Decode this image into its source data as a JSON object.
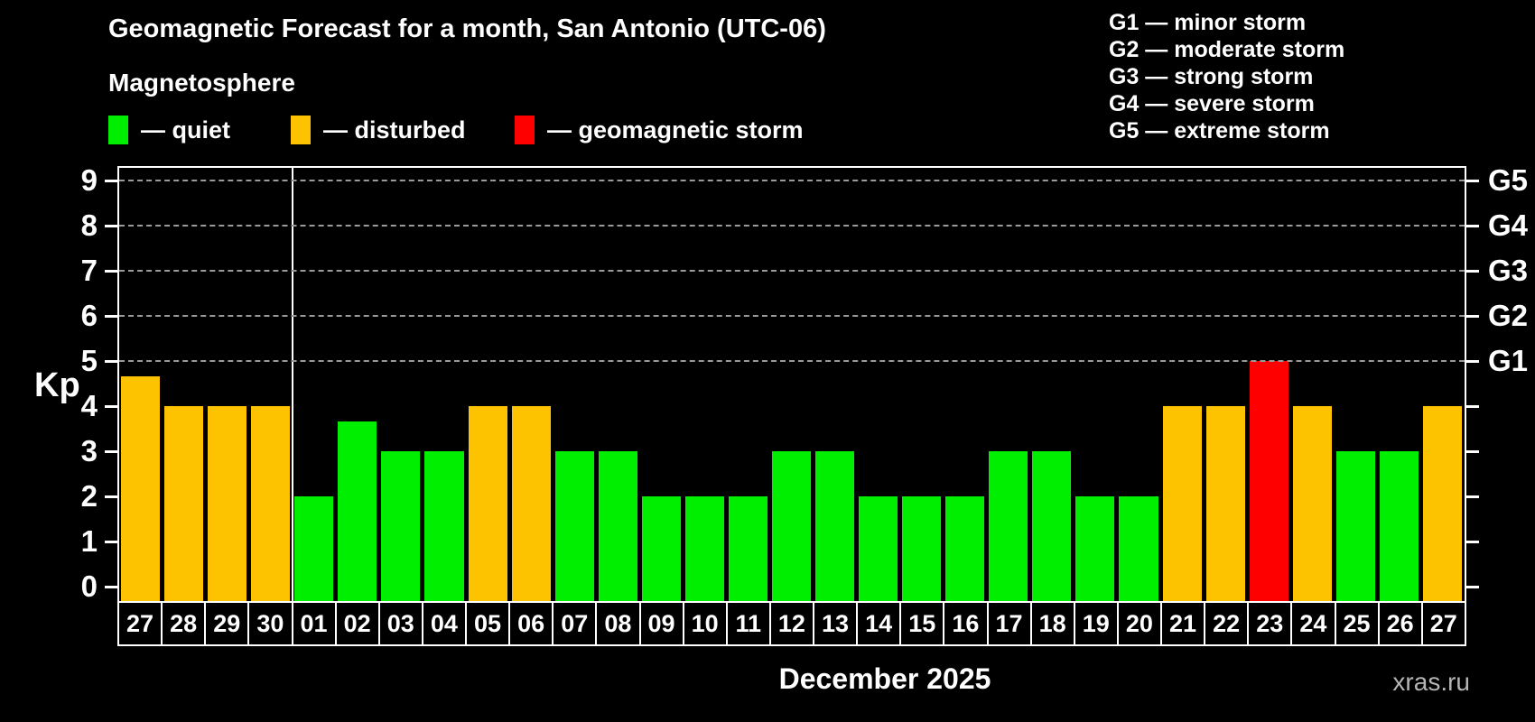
{
  "title": "Geomagnetic Forecast for a month, San Antonio (UTC-06)",
  "subtitle": "Magnetosphere",
  "legend": {
    "items": [
      {
        "key": "quiet",
        "label": "— quiet"
      },
      {
        "key": "disturbed",
        "label": "— disturbed"
      },
      {
        "key": "storm",
        "label": "— geomagnetic storm"
      }
    ]
  },
  "g_legend": [
    "G1 — minor storm",
    "G2 — moderate storm",
    "G3 — strong storm",
    "G4 — severe storm",
    "G5 — extreme storm"
  ],
  "colors": {
    "quiet": "#00ee00",
    "disturbed": "#fec300",
    "storm": "#ff0000",
    "gridline": "#9a9a9a",
    "axis": "#ffffff"
  },
  "axis": {
    "y_label": "Kp"
  },
  "x_axis_label": "December 2025",
  "watermark": "xras.ru",
  "chart_data": {
    "type": "bar",
    "title": "Geomagnetic Forecast for a month, San Antonio (UTC-06)",
    "xlabel": "December 2025",
    "ylabel": "Kp",
    "ylim": [
      0,
      9.3
    ],
    "y_ticks": [
      0,
      1,
      2,
      3,
      4,
      5,
      6,
      7,
      8,
      9
    ],
    "grid": "dashed horizontal at Kp 5-9 only",
    "gridline_kp": [
      5,
      6,
      7,
      8,
      9
    ],
    "right_axis": [
      {
        "kp": 5,
        "label": "G1"
      },
      {
        "kp": 6,
        "label": "G2"
      },
      {
        "kp": 7,
        "label": "G3"
      },
      {
        "kp": 8,
        "label": "G4"
      },
      {
        "kp": 9,
        "label": "G5"
      }
    ],
    "month_separator_after_index": 3,
    "legend_position": "top-left",
    "days": [
      {
        "day": "27",
        "kp": 4.67,
        "status": "disturbed"
      },
      {
        "day": "28",
        "kp": 4,
        "status": "disturbed"
      },
      {
        "day": "29",
        "kp": 4,
        "status": "disturbed"
      },
      {
        "day": "30",
        "kp": 4,
        "status": "disturbed"
      },
      {
        "day": "01",
        "kp": 2,
        "status": "quiet"
      },
      {
        "day": "02",
        "kp": 3.67,
        "status": "quiet"
      },
      {
        "day": "03",
        "kp": 3,
        "status": "quiet"
      },
      {
        "day": "04",
        "kp": 3,
        "status": "quiet"
      },
      {
        "day": "05",
        "kp": 4,
        "status": "disturbed"
      },
      {
        "day": "06",
        "kp": 4,
        "status": "disturbed"
      },
      {
        "day": "07",
        "kp": 3,
        "status": "quiet"
      },
      {
        "day": "08",
        "kp": 3,
        "status": "quiet"
      },
      {
        "day": "09",
        "kp": 2,
        "status": "quiet"
      },
      {
        "day": "10",
        "kp": 2,
        "status": "quiet"
      },
      {
        "day": "11",
        "kp": 2,
        "status": "quiet"
      },
      {
        "day": "12",
        "kp": 3,
        "status": "quiet"
      },
      {
        "day": "13",
        "kp": 3,
        "status": "quiet"
      },
      {
        "day": "14",
        "kp": 2,
        "status": "quiet"
      },
      {
        "day": "15",
        "kp": 2,
        "status": "quiet"
      },
      {
        "day": "16",
        "kp": 2,
        "status": "quiet"
      },
      {
        "day": "17",
        "kp": 3,
        "status": "quiet"
      },
      {
        "day": "18",
        "kp": 3,
        "status": "quiet"
      },
      {
        "day": "19",
        "kp": 2,
        "status": "quiet"
      },
      {
        "day": "20",
        "kp": 2,
        "status": "quiet"
      },
      {
        "day": "21",
        "kp": 4,
        "status": "disturbed"
      },
      {
        "day": "22",
        "kp": 4,
        "status": "disturbed"
      },
      {
        "day": "23",
        "kp": 5,
        "status": "storm"
      },
      {
        "day": "24",
        "kp": 4,
        "status": "disturbed"
      },
      {
        "day": "25",
        "kp": 3,
        "status": "quiet"
      },
      {
        "day": "26",
        "kp": 3,
        "status": "quiet"
      },
      {
        "day": "27",
        "kp": 4,
        "status": "disturbed"
      }
    ]
  }
}
